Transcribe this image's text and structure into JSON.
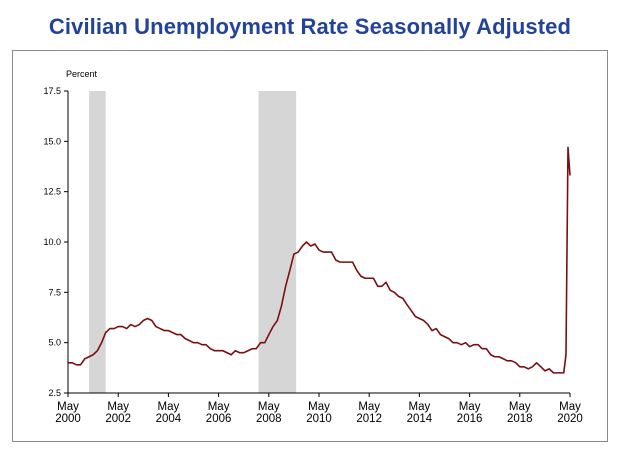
{
  "title": "Civilian Unemployment Rate Seasonally Adjusted",
  "chart_data": {
    "type": "line",
    "ylabel": "Percent",
    "ylim": [
      2.5,
      17.5
    ],
    "yticks": [
      "17.5",
      "15.0",
      "12.5",
      "10.0",
      "7.5",
      "5.0",
      "2.5"
    ],
    "ytick_values": [
      17.5,
      15.0,
      12.5,
      10.0,
      7.5,
      5.0,
      2.5
    ],
    "xlim": [
      2000.33,
      2020.33
    ],
    "xticks": [
      {
        "month": "May",
        "year": "2000",
        "x": 2000.33
      },
      {
        "month": "May",
        "year": "2002",
        "x": 2002.33
      },
      {
        "month": "May",
        "year": "2004",
        "x": 2004.33
      },
      {
        "month": "May",
        "year": "2006",
        "x": 2006.33
      },
      {
        "month": "May",
        "year": "2008",
        "x": 2008.33
      },
      {
        "month": "May",
        "year": "2010",
        "x": 2010.33
      },
      {
        "month": "May",
        "year": "2012",
        "x": 2012.33
      },
      {
        "month": "May",
        "year": "2014",
        "x": 2014.33
      },
      {
        "month": "May",
        "year": "2016",
        "x": 2016.33
      },
      {
        "month": "May",
        "year": "2018",
        "x": 2018.33
      },
      {
        "month": "May",
        "year": "2020",
        "x": 2020.33
      }
    ],
    "recessions": [
      {
        "start": 2001.17,
        "end": 2001.83
      },
      {
        "start": 2007.92,
        "end": 2009.42
      }
    ],
    "line_color": "#7b0f0f",
    "recession_color": "#d6d6d6",
    "series": [
      {
        "points": [
          [
            2000.33,
            4.0
          ],
          [
            2000.5,
            4.0
          ],
          [
            2000.67,
            3.9
          ],
          [
            2000.83,
            3.9
          ],
          [
            2001.0,
            4.2
          ],
          [
            2001.17,
            4.3
          ],
          [
            2001.33,
            4.4
          ],
          [
            2001.5,
            4.6
          ],
          [
            2001.67,
            5.0
          ],
          [
            2001.83,
            5.5
          ],
          [
            2002.0,
            5.7
          ],
          [
            2002.17,
            5.7
          ],
          [
            2002.33,
            5.8
          ],
          [
            2002.5,
            5.8
          ],
          [
            2002.67,
            5.7
          ],
          [
            2002.83,
            5.9
          ],
          [
            2003.0,
            5.8
          ],
          [
            2003.17,
            5.9
          ],
          [
            2003.33,
            6.1
          ],
          [
            2003.5,
            6.2
          ],
          [
            2003.67,
            6.1
          ],
          [
            2003.83,
            5.8
          ],
          [
            2004.0,
            5.7
          ],
          [
            2004.17,
            5.6
          ],
          [
            2004.33,
            5.6
          ],
          [
            2004.5,
            5.5
          ],
          [
            2004.67,
            5.4
          ],
          [
            2004.83,
            5.4
          ],
          [
            2005.0,
            5.2
          ],
          [
            2005.17,
            5.1
          ],
          [
            2005.33,
            5.0
          ],
          [
            2005.5,
            5.0
          ],
          [
            2005.67,
            4.9
          ],
          [
            2005.83,
            4.9
          ],
          [
            2006.0,
            4.7
          ],
          [
            2006.17,
            4.6
          ],
          [
            2006.33,
            4.6
          ],
          [
            2006.5,
            4.6
          ],
          [
            2006.67,
            4.5
          ],
          [
            2006.83,
            4.4
          ],
          [
            2007.0,
            4.6
          ],
          [
            2007.17,
            4.5
          ],
          [
            2007.33,
            4.5
          ],
          [
            2007.5,
            4.6
          ],
          [
            2007.67,
            4.7
          ],
          [
            2007.83,
            4.7
          ],
          [
            2008.0,
            5.0
          ],
          [
            2008.17,
            5.0
          ],
          [
            2008.33,
            5.4
          ],
          [
            2008.5,
            5.8
          ],
          [
            2008.67,
            6.1
          ],
          [
            2008.83,
            6.8
          ],
          [
            2009.0,
            7.8
          ],
          [
            2009.17,
            8.6
          ],
          [
            2009.33,
            9.4
          ],
          [
            2009.5,
            9.5
          ],
          [
            2009.67,
            9.8
          ],
          [
            2009.83,
            10.0
          ],
          [
            2010.0,
            9.8
          ],
          [
            2010.17,
            9.9
          ],
          [
            2010.33,
            9.6
          ],
          [
            2010.5,
            9.5
          ],
          [
            2010.67,
            9.5
          ],
          [
            2010.83,
            9.5
          ],
          [
            2011.0,
            9.1
          ],
          [
            2011.17,
            9.0
          ],
          [
            2011.33,
            9.0
          ],
          [
            2011.5,
            9.0
          ],
          [
            2011.67,
            9.0
          ],
          [
            2011.83,
            8.6
          ],
          [
            2012.0,
            8.3
          ],
          [
            2012.17,
            8.2
          ],
          [
            2012.33,
            8.2
          ],
          [
            2012.5,
            8.2
          ],
          [
            2012.67,
            7.8
          ],
          [
            2012.83,
            7.8
          ],
          [
            2013.0,
            8.0
          ],
          [
            2013.17,
            7.6
          ],
          [
            2013.33,
            7.5
          ],
          [
            2013.5,
            7.3
          ],
          [
            2013.67,
            7.2
          ],
          [
            2013.83,
            6.9
          ],
          [
            2014.0,
            6.6
          ],
          [
            2014.17,
            6.3
          ],
          [
            2014.33,
            6.2
          ],
          [
            2014.5,
            6.1
          ],
          [
            2014.67,
            5.9
          ],
          [
            2014.83,
            5.6
          ],
          [
            2015.0,
            5.7
          ],
          [
            2015.17,
            5.4
          ],
          [
            2015.33,
            5.3
          ],
          [
            2015.5,
            5.2
          ],
          [
            2015.67,
            5.0
          ],
          [
            2015.83,
            5.0
          ],
          [
            2016.0,
            4.9
          ],
          [
            2016.17,
            5.0
          ],
          [
            2016.33,
            4.8
          ],
          [
            2016.5,
            4.9
          ],
          [
            2016.67,
            4.9
          ],
          [
            2016.83,
            4.7
          ],
          [
            2017.0,
            4.7
          ],
          [
            2017.17,
            4.4
          ],
          [
            2017.33,
            4.3
          ],
          [
            2017.5,
            4.3
          ],
          [
            2017.67,
            4.2
          ],
          [
            2017.83,
            4.1
          ],
          [
            2018.0,
            4.1
          ],
          [
            2018.17,
            4.0
          ],
          [
            2018.33,
            3.8
          ],
          [
            2018.5,
            3.8
          ],
          [
            2018.67,
            3.7
          ],
          [
            2018.83,
            3.8
          ],
          [
            2019.0,
            4.0
          ],
          [
            2019.17,
            3.8
          ],
          [
            2019.33,
            3.6
          ],
          [
            2019.5,
            3.7
          ],
          [
            2019.67,
            3.5
          ],
          [
            2019.83,
            3.5
          ],
          [
            2020.0,
            3.5
          ],
          [
            2020.08,
            3.5
          ],
          [
            2020.17,
            4.4
          ],
          [
            2020.25,
            14.7
          ],
          [
            2020.33,
            13.3
          ]
        ]
      }
    ]
  }
}
